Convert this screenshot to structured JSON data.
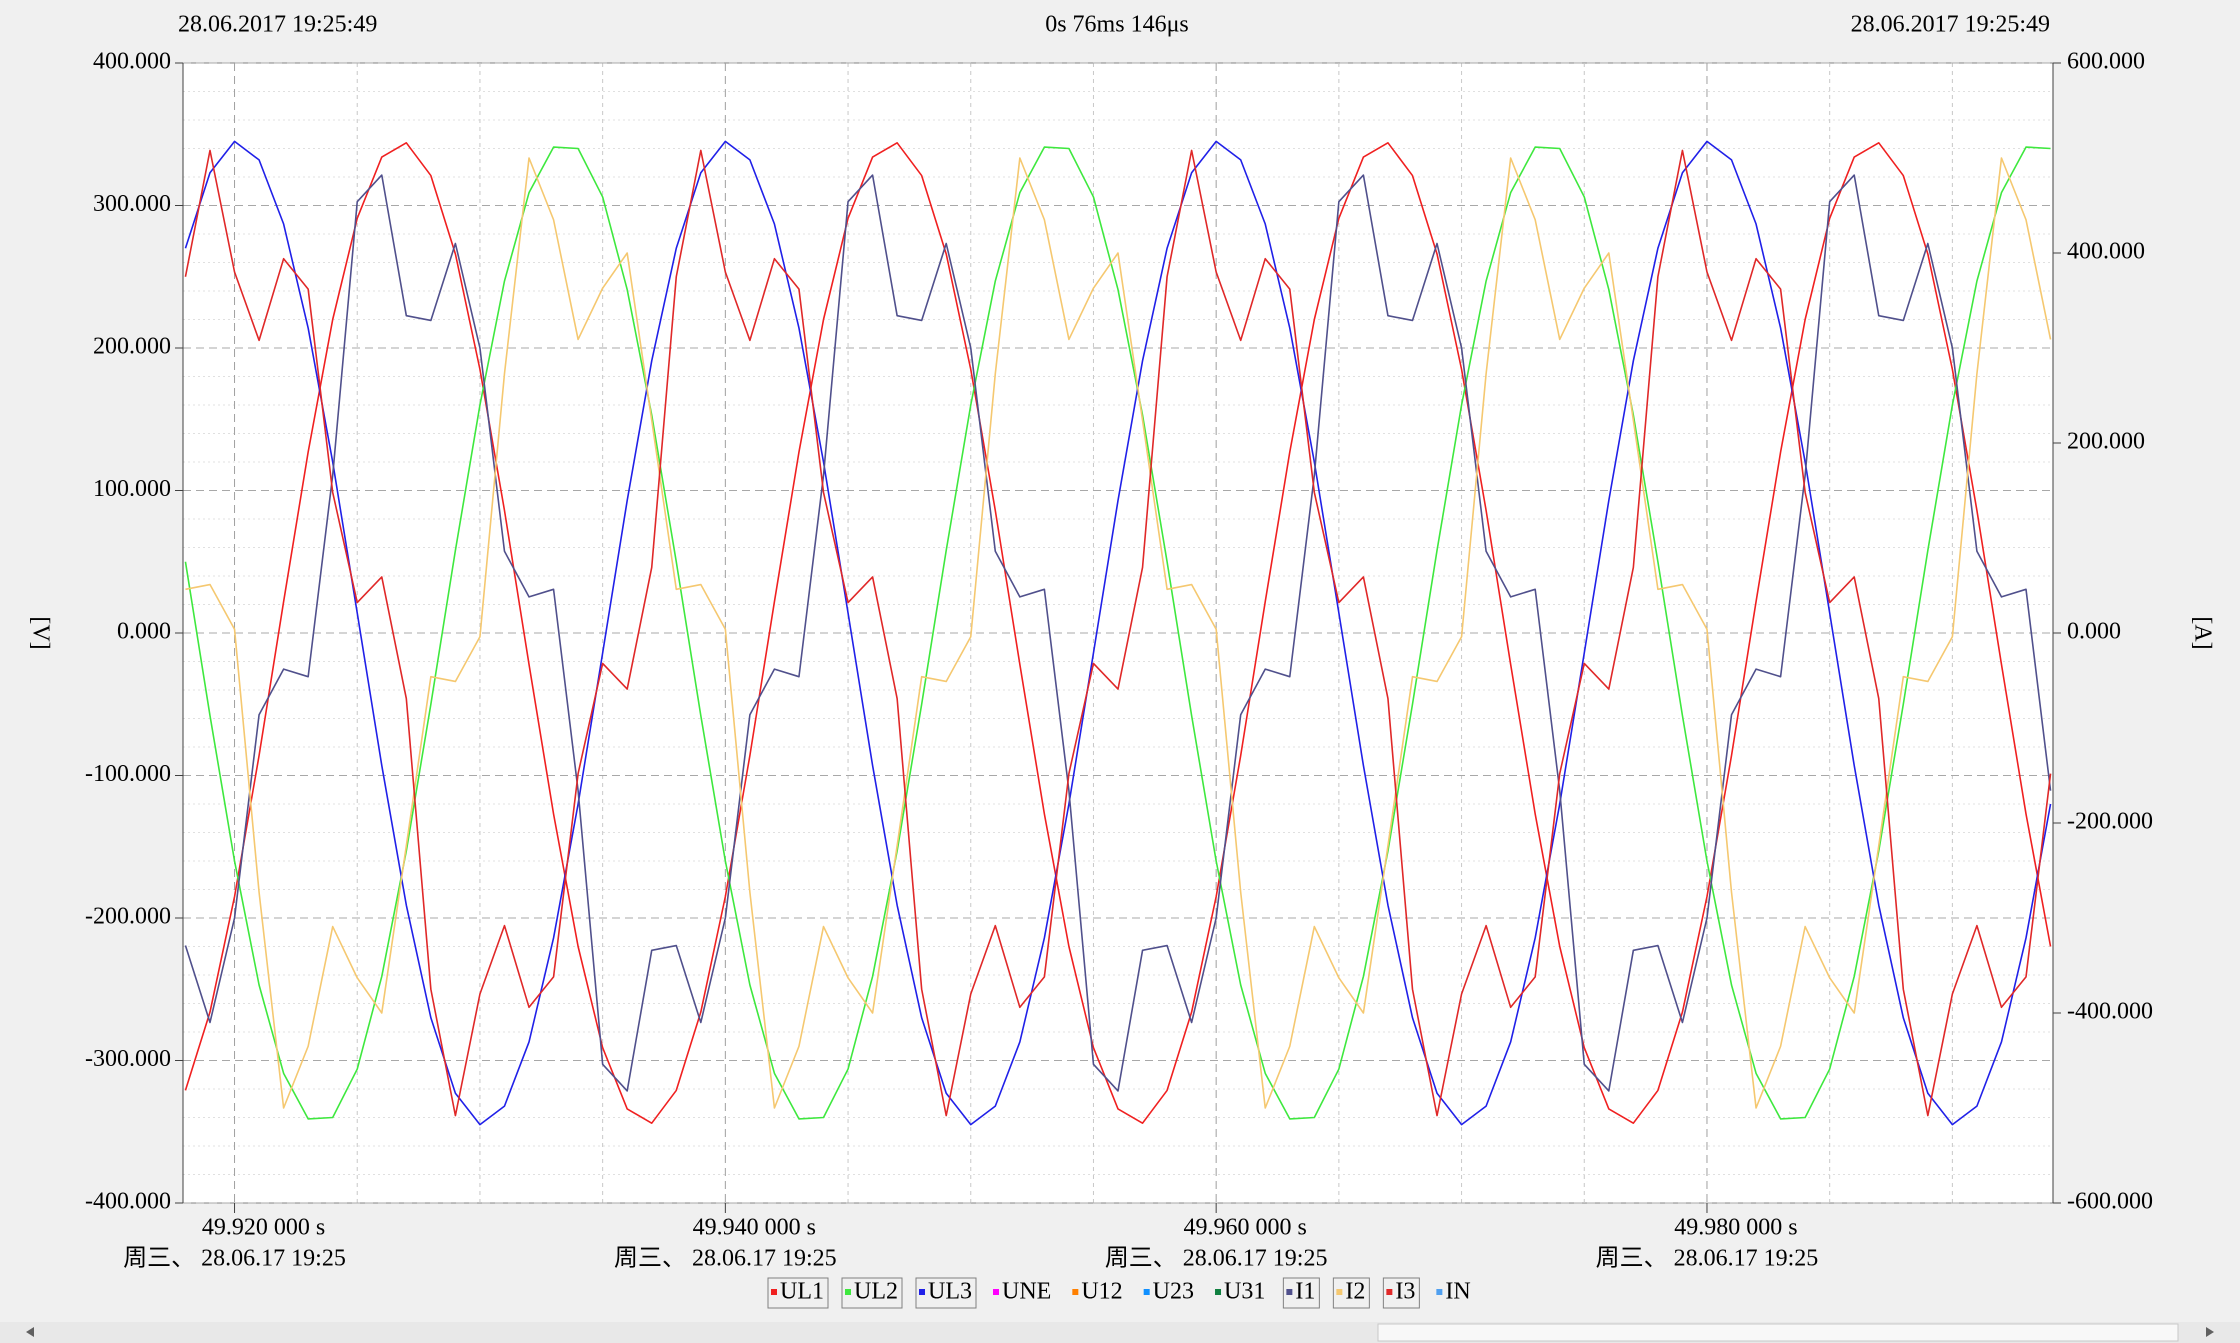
{
  "chart_data": {
    "type": "line",
    "header": {
      "left": "28.06.2017 19:25:49",
      "center": "0s 76ms 146μs",
      "right": "28.06.2017 19:25:49"
    },
    "ylabel": "[V]",
    "y2label": "[A]",
    "xlim": [
      49.9179,
      49.9941
    ],
    "xticks": [
      {
        "value": 49.92,
        "label": "49.920 000 s"
      },
      {
        "value": 49.94,
        "label": "49.940 000 s"
      },
      {
        "value": 49.96,
        "label": "49.960 000 s"
      },
      {
        "value": 49.98,
        "label": "49.980 000 s"
      }
    ],
    "xtick_sublabels": [
      "周三、 28.06.17 19:25",
      "周三、 28.06.17 19:25",
      "周三、 28.06.17 19:25",
      "周三、 28.06.17 19:25"
    ],
    "xminorticks": [
      49.925,
      49.93,
      49.935,
      49.945,
      49.95,
      49.955,
      49.965,
      49.97,
      49.975,
      49.985,
      49.99
    ],
    "ylim": [
      -400,
      400
    ],
    "yticks": [
      {
        "value": 400,
        "label": "400.000"
      },
      {
        "value": 300,
        "label": "300.000"
      },
      {
        "value": 200,
        "label": "200.000"
      },
      {
        "value": 100,
        "label": "100.000"
      },
      {
        "value": 0,
        "label": "0.000"
      },
      {
        "value": -100,
        "label": "-100.000"
      },
      {
        "value": -200,
        "label": "-200.000"
      },
      {
        "value": -300,
        "label": "-300.000"
      },
      {
        "value": -400,
        "label": "-400.000"
      }
    ],
    "yminorticks": [
      380,
      360,
      340,
      320,
      280,
      260,
      240,
      220,
      180,
      160,
      140,
      120,
      80,
      60,
      40,
      20,
      -20,
      -40,
      -60,
      -80,
      -120,
      -140,
      -160,
      -180,
      -220,
      -240,
      -260,
      -280,
      -320,
      -340,
      -360,
      -380
    ],
    "y2lim": [
      -600,
      600
    ],
    "y2ticks": [
      {
        "value": 600,
        "label": "600.000"
      },
      {
        "value": 400,
        "label": "400.000"
      },
      {
        "value": 200,
        "label": "200.000"
      },
      {
        "value": 0,
        "label": "0.000"
      },
      {
        "value": -200,
        "label": "-200.000"
      },
      {
        "value": -400,
        "label": "-400.000"
      },
      {
        "value": -600,
        "label": "-600.000"
      }
    ],
    "grid": true,
    "legend": "bottom",
    "x": [
      49.918,
      49.919,
      49.92,
      49.921,
      49.922,
      49.923,
      49.924,
      49.925,
      49.926,
      49.927,
      49.928,
      49.929,
      49.93,
      49.931,
      49.932,
      49.933,
      49.934,
      49.935,
      49.936,
      49.937,
      49.938,
      49.939,
      49.94,
      49.941,
      49.942,
      49.943,
      49.944,
      49.945,
      49.946,
      49.947,
      49.948,
      49.949,
      49.95,
      49.951,
      49.952,
      49.953,
      49.954,
      49.955,
      49.956,
      49.957,
      49.958,
      49.959,
      49.96,
      49.961,
      49.962,
      49.963,
      49.964,
      49.965,
      49.966,
      49.967,
      49.968,
      49.969,
      49.97,
      49.971,
      49.972,
      49.973,
      49.974,
      49.975,
      49.976,
      49.977,
      49.978,
      49.979,
      49.98,
      49.981,
      49.982,
      49.983,
      49.984,
      49.985,
      49.986,
      49.987,
      49.988,
      49.989,
      49.99,
      49.991,
      49.992,
      49.993,
      49.994
    ],
    "series": [
      {
        "name": "UL1",
        "color": "#f02020",
        "axis": "y",
        "values": [
          -321,
          -266,
          -185,
          -86,
          22,
          127,
          220,
          291,
          334,
          344,
          321,
          266,
          185,
          86,
          -22,
          -127,
          -220,
          -291,
          -334,
          -344,
          -321,
          -266,
          -185,
          -86,
          22,
          127,
          220,
          291,
          334,
          344,
          321,
          266,
          185,
          86,
          -22,
          -127,
          -220,
          -291,
          -334,
          -344,
          -321,
          -266,
          -185,
          -86,
          22,
          127,
          220,
          291,
          334,
          344,
          321,
          266,
          185,
          86,
          -22,
          -127,
          -220,
          -291,
          -334,
          -344,
          -321,
          -266,
          -185,
          -86,
          22,
          127,
          220,
          291,
          334,
          344,
          321,
          266,
          185,
          86,
          -22,
          -127,
          -220
        ]
      },
      {
        "name": "UL2",
        "color": "#3ee83e",
        "axis": "y",
        "values": [
          50,
          -58,
          -160,
          -247,
          -309,
          -341,
          -340,
          -306,
          -241,
          -153,
          -50,
          58,
          160,
          247,
          309,
          341,
          340,
          306,
          241,
          153,
          50,
          -58,
          -160,
          -247,
          -309,
          -341,
          -340,
          -306,
          -241,
          -153,
          -50,
          58,
          160,
          247,
          309,
          341,
          340,
          306,
          241,
          153,
          50,
          -58,
          -160,
          -247,
          -309,
          -341,
          -340,
          -306,
          -241,
          -153,
          -50,
          58,
          160,
          247,
          309,
          341,
          340,
          306,
          241,
          153,
          50,
          -58,
          -160,
          -247,
          -309,
          -341,
          -340,
          -306,
          -241,
          -153,
          -50,
          58,
          160,
          247,
          309,
          341,
          340
        ]
      },
      {
        "name": "UL3",
        "color": "#2020e8",
        "axis": "y",
        "values": [
          270,
          323,
          345,
          332,
          287,
          214,
          120,
          14,
          -93,
          -191,
          -270,
          -323,
          -345,
          -332,
          -287,
          -214,
          -120,
          -14,
          93,
          191,
          270,
          323,
          345,
          332,
          287,
          214,
          120,
          14,
          -93,
          -191,
          -270,
          -323,
          -345,
          -332,
          -287,
          -214,
          -120,
          -14,
          93,
          191,
          270,
          323,
          345,
          332,
          287,
          214,
          120,
          14,
          -93,
          -191,
          -270,
          -323,
          -345,
          -332,
          -287,
          -214,
          -120,
          -14,
          93,
          191,
          270,
          323,
          345,
          332,
          287,
          214,
          120,
          14,
          -93,
          -191,
          -270,
          -323,
          -345,
          -332,
          -287,
          -214,
          -120
        ]
      },
      {
        "name": "UNE",
        "color": "#ff00ff"
      },
      {
        "name": "U12",
        "color": "#ff8000"
      },
      {
        "name": "U23",
        "color": "#1090ff"
      },
      {
        "name": "U31",
        "color": "#108040"
      },
      {
        "name": "I1",
        "color": "#50508c",
        "axis": "y2",
        "values": [
          -329,
          -410,
          -300,
          -86,
          -38,
          -46,
          166,
          454,
          482,
          334,
          329,
          410,
          300,
          86,
          38,
          46,
          -166,
          -454,
          -482,
          -334,
          -329,
          -410,
          -300,
          -86,
          -38,
          -46,
          166,
          454,
          482,
          334,
          329,
          410,
          300,
          86,
          38,
          46,
          -166,
          -454,
          -482,
          -334,
          -329,
          -410,
          -300,
          -86,
          -38,
          -46,
          166,
          454,
          482,
          334,
          329,
          410,
          300,
          86,
          38,
          46,
          -166,
          -454,
          -482,
          -334,
          -329,
          -410,
          -300,
          -86,
          -38,
          -46,
          166,
          454,
          482,
          334,
          329,
          410,
          300,
          86,
          38,
          46,
          -166
        ]
      },
      {
        "name": "I2",
        "color": "#f5c870",
        "axis": "y2",
        "values": [
          46,
          51,
          4,
          -273,
          -500,
          -435,
          -309,
          -363,
          -400,
          -224,
          -46,
          -51,
          -4,
          273,
          500,
          435,
          309,
          363,
          400,
          224,
          46,
          51,
          4,
          -273,
          -500,
          -435,
          -309,
          -363,
          -400,
          -224,
          -46,
          -51,
          -4,
          273,
          500,
          435,
          309,
          363,
          400,
          224,
          46,
          51,
          4,
          -273,
          -500,
          -435,
          -309,
          -363,
          -400,
          -224,
          -46,
          -51,
          -4,
          273,
          500,
          435,
          309,
          363,
          400,
          224,
          46,
          51,
          4,
          -273,
          -500,
          -435,
          -309,
          -363,
          -400,
          -224,
          -46,
          -51,
          -4,
          273,
          500,
          435,
          309
        ]
      },
      {
        "name": "I3",
        "color": "#e02828",
        "axis": "y2",
        "values": [
          375,
          508,
          380,
          308,
          394,
          362,
          148,
          32,
          59,
          -69,
          -375,
          -508,
          -380,
          -308,
          -394,
          -362,
          -148,
          -32,
          -59,
          69,
          375,
          508,
          380,
          308,
          394,
          362,
          148,
          32,
          59,
          -69,
          -375,
          -508,
          -380,
          -308,
          -394,
          -362,
          -148,
          -32,
          -59,
          69,
          375,
          508,
          380,
          308,
          394,
          362,
          148,
          32,
          59,
          -69,
          -375,
          -508,
          -380,
          -308,
          -394,
          -362,
          -148,
          -32,
          -59,
          69,
          375,
          508,
          380,
          308,
          394,
          362,
          148,
          32,
          59,
          -69,
          -375,
          -508,
          -380,
          -308,
          -394,
          -362,
          -148
        ]
      },
      {
        "name": "IN",
        "color": "#50a0f0"
      }
    ]
  }
}
